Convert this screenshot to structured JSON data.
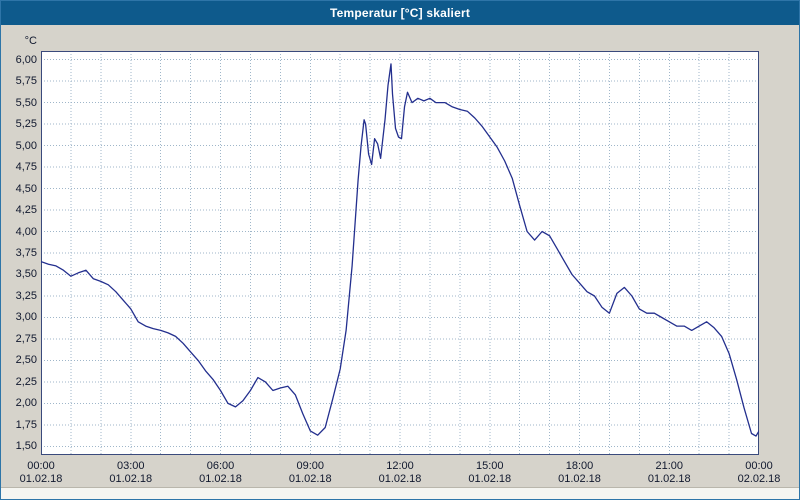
{
  "window": {
    "title": "Temperatur [°C] skaliert"
  },
  "colors": {
    "titlebar": "#0e5a8c",
    "border": "#2e75a8",
    "window_bg": "#d6d3cb",
    "plot_bg": "#ffffff",
    "grid": "#9fb6c9",
    "axis": "#3a4a7c",
    "series": "#232f8e",
    "text": "#10182e"
  },
  "chart_data": {
    "type": "line",
    "title": "Temperatur [°C] skaliert",
    "xlabel": "",
    "ylabel": "°C",
    "xlim": [
      0,
      24
    ],
    "ylim": [
      1.4,
      6.1
    ],
    "grid": "dotted",
    "legend": "none",
    "x_grid_step_hours": 1,
    "y_ticks": [
      {
        "value": 6.0,
        "label": "6,00"
      },
      {
        "value": 5.75,
        "label": "5,75"
      },
      {
        "value": 5.5,
        "label": "5,50"
      },
      {
        "value": 5.25,
        "label": "5,25"
      },
      {
        "value": 5.0,
        "label": "5,00"
      },
      {
        "value": 4.75,
        "label": "4,75"
      },
      {
        "value": 4.5,
        "label": "4,50"
      },
      {
        "value": 4.25,
        "label": "4,25"
      },
      {
        "value": 4.0,
        "label": "4,00"
      },
      {
        "value": 3.75,
        "label": "3,75"
      },
      {
        "value": 3.5,
        "label": "3,50"
      },
      {
        "value": 3.25,
        "label": "3,25"
      },
      {
        "value": 3.0,
        "label": "3,00"
      },
      {
        "value": 2.75,
        "label": "2,75"
      },
      {
        "value": 2.5,
        "label": "2,50"
      },
      {
        "value": 2.25,
        "label": "2,25"
      },
      {
        "value": 2.0,
        "label": "2,00"
      },
      {
        "value": 1.75,
        "label": "1,75"
      },
      {
        "value": 1.5,
        "label": "1,50"
      }
    ],
    "x_ticks": [
      {
        "hour": 0,
        "time": "00:00",
        "date": "01.02.18"
      },
      {
        "hour": 3,
        "time": "03:00",
        "date": "01.02.18"
      },
      {
        "hour": 6,
        "time": "06:00",
        "date": "01.02.18"
      },
      {
        "hour": 9,
        "time": "09:00",
        "date": "01.02.18"
      },
      {
        "hour": 12,
        "time": "12:00",
        "date": "01.02.18"
      },
      {
        "hour": 15,
        "time": "15:00",
        "date": "01.02.18"
      },
      {
        "hour": 18,
        "time": "18:00",
        "date": "01.02.18"
      },
      {
        "hour": 21,
        "time": "21:00",
        "date": "01.02.18"
      },
      {
        "hour": 24,
        "time": "00:00",
        "date": "02.02.18"
      }
    ],
    "series": [
      {
        "name": "Temperatur [°C] skaliert",
        "points": [
          [
            0,
            3.65
          ],
          [
            0.25,
            3.62
          ],
          [
            0.5,
            3.6
          ],
          [
            0.75,
            3.55
          ],
          [
            1,
            3.48
          ],
          [
            1.25,
            3.52
          ],
          [
            1.5,
            3.55
          ],
          [
            1.75,
            3.45
          ],
          [
            2,
            3.42
          ],
          [
            2.25,
            3.38
          ],
          [
            2.5,
            3.3
          ],
          [
            2.75,
            3.2
          ],
          [
            3,
            3.1
          ],
          [
            3.25,
            2.95
          ],
          [
            3.5,
            2.9
          ],
          [
            3.75,
            2.87
          ],
          [
            4,
            2.85
          ],
          [
            4.25,
            2.82
          ],
          [
            4.5,
            2.78
          ],
          [
            4.75,
            2.7
          ],
          [
            5,
            2.6
          ],
          [
            5.25,
            2.5
          ],
          [
            5.5,
            2.38
          ],
          [
            5.75,
            2.28
          ],
          [
            6,
            2.15
          ],
          [
            6.25,
            2.0
          ],
          [
            6.5,
            1.96
          ],
          [
            6.75,
            2.03
          ],
          [
            7,
            2.15
          ],
          [
            7.25,
            2.3
          ],
          [
            7.5,
            2.25
          ],
          [
            7.75,
            2.15
          ],
          [
            8,
            2.18
          ],
          [
            8.25,
            2.2
          ],
          [
            8.5,
            2.1
          ],
          [
            8.75,
            1.88
          ],
          [
            9,
            1.68
          ],
          [
            9.25,
            1.63
          ],
          [
            9.5,
            1.72
          ],
          [
            9.75,
            2.05
          ],
          [
            10,
            2.4
          ],
          [
            10.2,
            2.85
          ],
          [
            10.4,
            3.6
          ],
          [
            10.5,
            4.1
          ],
          [
            10.6,
            4.6
          ],
          [
            10.7,
            5.0
          ],
          [
            10.8,
            5.3
          ],
          [
            10.85,
            5.25
          ],
          [
            10.95,
            4.9
          ],
          [
            11.05,
            4.78
          ],
          [
            11.15,
            5.08
          ],
          [
            11.25,
            5.02
          ],
          [
            11.35,
            4.85
          ],
          [
            11.5,
            5.3
          ],
          [
            11.6,
            5.7
          ],
          [
            11.7,
            5.95
          ],
          [
            11.75,
            5.6
          ],
          [
            11.85,
            5.2
          ],
          [
            11.95,
            5.1
          ],
          [
            12.05,
            5.08
          ],
          [
            12.15,
            5.45
          ],
          [
            12.25,
            5.62
          ],
          [
            12.4,
            5.5
          ],
          [
            12.6,
            5.55
          ],
          [
            12.8,
            5.52
          ],
          [
            13,
            5.55
          ],
          [
            13.2,
            5.5
          ],
          [
            13.5,
            5.5
          ],
          [
            13.75,
            5.45
          ],
          [
            14,
            5.42
          ],
          [
            14.25,
            5.4
          ],
          [
            14.5,
            5.32
          ],
          [
            14.75,
            5.22
          ],
          [
            15,
            5.1
          ],
          [
            15.25,
            4.98
          ],
          [
            15.5,
            4.82
          ],
          [
            15.75,
            4.62
          ],
          [
            16,
            4.3
          ],
          [
            16.25,
            4.0
          ],
          [
            16.5,
            3.9
          ],
          [
            16.75,
            4.0
          ],
          [
            17,
            3.95
          ],
          [
            17.25,
            3.8
          ],
          [
            17.5,
            3.65
          ],
          [
            17.75,
            3.5
          ],
          [
            18,
            3.4
          ],
          [
            18.25,
            3.3
          ],
          [
            18.5,
            3.25
          ],
          [
            18.75,
            3.12
          ],
          [
            19,
            3.05
          ],
          [
            19.25,
            3.28
          ],
          [
            19.5,
            3.35
          ],
          [
            19.75,
            3.25
          ],
          [
            20,
            3.1
          ],
          [
            20.25,
            3.05
          ],
          [
            20.5,
            3.05
          ],
          [
            20.75,
            3.0
          ],
          [
            21,
            2.95
          ],
          [
            21.25,
            2.9
          ],
          [
            21.5,
            2.9
          ],
          [
            21.75,
            2.85
          ],
          [
            22,
            2.9
          ],
          [
            22.25,
            2.95
          ],
          [
            22.5,
            2.88
          ],
          [
            22.75,
            2.78
          ],
          [
            23,
            2.58
          ],
          [
            23.25,
            2.28
          ],
          [
            23.5,
            1.95
          ],
          [
            23.75,
            1.65
          ],
          [
            23.9,
            1.62
          ],
          [
            24,
            1.68
          ]
        ]
      }
    ]
  }
}
